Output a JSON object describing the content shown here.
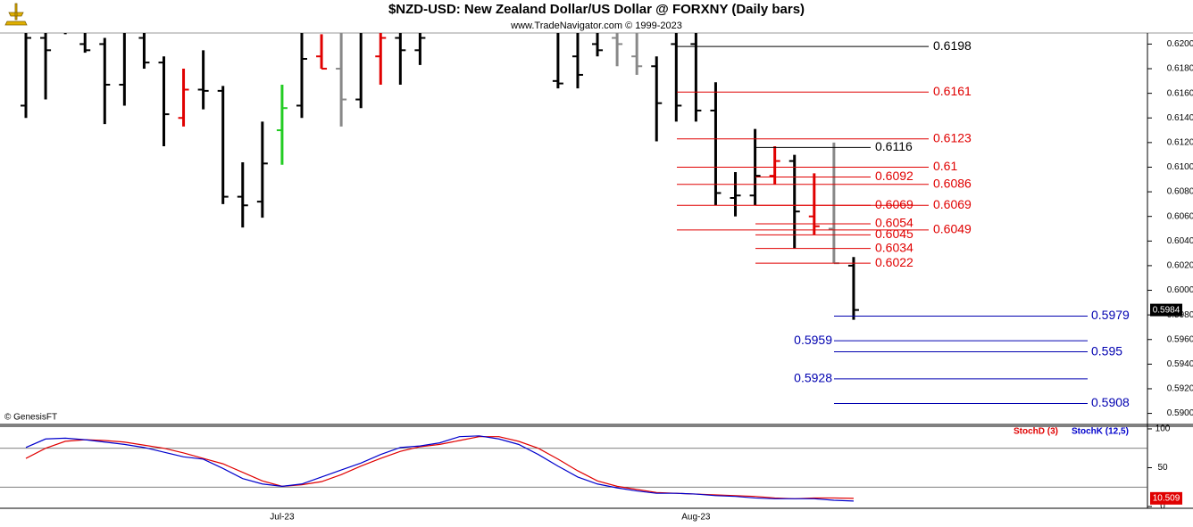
{
  "chart_data": [
    {
      "type": "ohlc",
      "title": "$NZD-USD:  New Zealand Dollar/US Dollar @ FORXNY  (Daily bars)",
      "subtitle": "www.TradeNavigator.com © 1999-2023",
      "credit": "© GenesisFT",
      "categories": [
        null,
        null,
        null,
        null,
        null,
        null,
        null,
        null,
        null,
        null,
        null,
        null,
        null,
        "Jul-23",
        null,
        null,
        null,
        null,
        null,
        null,
        null,
        null,
        null,
        null,
        null,
        null,
        null,
        null,
        null,
        null,
        null,
        null,
        null,
        null,
        "Aug-23",
        null,
        null,
        null,
        null,
        null,
        null,
        null,
        null
      ],
      "open": [
        0.615,
        0.6205,
        0.621,
        0.62,
        0.62,
        0.6167,
        0.6205,
        0.6185,
        0.614,
        0.6163,
        0.6162,
        0.6076,
        0.6072,
        0.613,
        0.615,
        0.619,
        0.618,
        0.6155,
        0.619,
        0.6205,
        0.6195,
        null,
        null,
        null,
        null,
        null,
        null,
        0.617,
        0.619,
        0.62,
        0.6205,
        0.619,
        0.6182,
        0.62,
        0.62,
        0.6146,
        0.6075,
        0.6077,
        0.6093,
        0.6105,
        0.606,
        0.605,
        0.602
      ],
      "high": [
        0.6215,
        0.6212,
        0.6212,
        0.621,
        0.6205,
        0.6212,
        0.621,
        0.619,
        0.618,
        0.6195,
        0.6166,
        0.6104,
        0.6137,
        0.6167,
        0.6212,
        0.6208,
        0.621,
        0.6212,
        0.621,
        0.6212,
        0.6212,
        null,
        null,
        null,
        null,
        null,
        null,
        0.621,
        0.621,
        0.6212,
        0.6212,
        0.621,
        0.619,
        0.621,
        0.621,
        0.6169,
        0.6096,
        0.6131,
        0.6117,
        0.611,
        0.6095,
        0.612,
        0.6027
      ],
      "low": [
        0.614,
        0.6155,
        0.6208,
        0.6193,
        0.6135,
        0.615,
        0.618,
        0.6117,
        0.6133,
        0.6147,
        0.607,
        0.6051,
        0.6059,
        0.6102,
        0.614,
        0.618,
        0.6133,
        0.6148,
        0.6167,
        0.6167,
        0.6183,
        null,
        null,
        null,
        null,
        null,
        null,
        0.6164,
        0.6164,
        0.619,
        0.6182,
        0.6175,
        0.6121,
        0.6137,
        0.6137,
        0.6069,
        0.606,
        0.6069,
        0.6086,
        0.6034,
        0.6045,
        0.6022,
        0.5976
      ],
      "close": [
        0.6205,
        0.6195,
        0.621,
        0.6195,
        0.6167,
        0.621,
        0.6185,
        0.6143,
        0.6163,
        0.6162,
        0.6076,
        0.6069,
        0.6103,
        0.6148,
        0.6188,
        0.618,
        0.6155,
        0.621,
        0.6205,
        0.6195,
        0.6205,
        null,
        null,
        null,
        null,
        null,
        null,
        0.6168,
        0.6175,
        0.6195,
        0.62,
        0.6182,
        0.6152,
        0.615,
        0.6146,
        0.6079,
        0.6077,
        0.6093,
        0.6105,
        0.6064,
        0.6052,
        0.6022,
        0.5984
      ],
      "colors": [
        "#000",
        "#000",
        "#000",
        "#000",
        "#000",
        "#000",
        "#000",
        "#000",
        "#e00000",
        "#000",
        "#000",
        "#000",
        "#000",
        "#22cc22",
        "#000",
        "#e00000",
        "#888",
        "#000",
        "#e00000",
        "#000",
        "#000",
        null,
        null,
        null,
        null,
        null,
        null,
        "#000",
        "#000",
        "#000",
        "#888",
        "#888",
        "#000",
        "#000",
        "#000",
        "#000",
        "#000",
        "#000",
        "#e00000",
        "#000",
        "#e00000",
        "#888",
        "#000"
      ],
      "ylim": [
        0.5891,
        0.6209
      ],
      "yticks": [
        {
          "value": 0.59,
          "label": "0.5900"
        },
        {
          "value": 0.592,
          "label": "0.5920"
        },
        {
          "value": 0.594,
          "label": "0.5940"
        },
        {
          "value": 0.596,
          "label": "0.5960"
        },
        {
          "value": 0.598,
          "label": "0.5980"
        },
        {
          "value": 0.6,
          "label": "0.6000"
        },
        {
          "value": 0.602,
          "label": "0.6020"
        },
        {
          "value": 0.604,
          "label": "0.6040"
        },
        {
          "value": 0.606,
          "label": "0.6060"
        },
        {
          "value": 0.608,
          "label": "0.6080"
        },
        {
          "value": 0.61,
          "label": "0.6100"
        },
        {
          "value": 0.612,
          "label": "0.6120"
        },
        {
          "value": 0.614,
          "label": "0.6140"
        },
        {
          "value": 0.616,
          "label": "0.6160"
        },
        {
          "value": 0.618,
          "label": "0.6180"
        },
        {
          "value": 0.62,
          "label": "0.6200"
        }
      ],
      "levels": [
        {
          "value": 0.6198,
          "color": "#000000"
        },
        {
          "value": 0.6161,
          "color": "#e00000"
        },
        {
          "value": 0.6123,
          "color": "#e00000"
        },
        {
          "value": 0.6116,
          "color": "#000000"
        },
        {
          "value": 0.61,
          "color": "#e00000"
        },
        {
          "value": 0.6092,
          "color": "#e00000"
        },
        {
          "value": 0.6086,
          "color": "#e00000"
        },
        {
          "value": 0.6069,
          "color": "#e00000"
        },
        {
          "value": 0.6069,
          "color": "#e00000"
        },
        {
          "value": 0.6054,
          "color": "#e00000"
        },
        {
          "value": 0.6049,
          "color": "#e00000"
        },
        {
          "value": 0.6045,
          "color": "#e00000"
        },
        {
          "value": 0.6034,
          "color": "#e00000"
        },
        {
          "value": 0.6022,
          "color": "#e00000"
        },
        {
          "value": 0.5979,
          "color": "#0000b0"
        },
        {
          "value": 0.5959,
          "color": "#0000b0"
        },
        {
          "value": 0.595,
          "color": "#0000b0"
        },
        {
          "value": 0.5928,
          "color": "#0000b0"
        },
        {
          "value": 0.5908,
          "color": "#0000b0"
        }
      ],
      "last_price": 0.5984
    },
    {
      "type": "line",
      "series": [
        {
          "name": "StochD (3)",
          "color": "#e00000",
          "values": [
            62,
            75,
            84,
            86,
            85,
            83,
            79,
            75,
            69,
            62,
            55,
            44,
            33,
            26,
            28,
            32,
            41,
            52,
            62,
            71,
            77,
            80,
            85,
            90,
            90,
            84,
            75,
            61,
            46,
            33,
            26,
            22,
            18,
            17,
            16,
            15,
            14,
            13,
            11,
            10,
            11,
            11,
            10.509
          ]
        },
        {
          "name": "StochK (12,5)",
          "color": "#0000cc",
          "values": [
            76,
            87,
            88,
            86,
            83,
            80,
            76,
            70,
            64,
            61,
            49,
            36,
            29,
            26,
            29,
            38,
            47,
            56,
            67,
            76,
            78,
            82,
            90,
            91,
            87,
            80,
            67,
            52,
            38,
            29,
            24,
            20,
            17,
            17,
            16,
            14,
            13,
            11,
            10,
            10,
            10,
            8,
            7
          ]
        }
      ],
      "ylim": [
        -2.3,
        103.4
      ],
      "yticks": [
        0,
        50,
        100
      ],
      "levels": [
        25,
        75
      ]
    }
  ]
}
